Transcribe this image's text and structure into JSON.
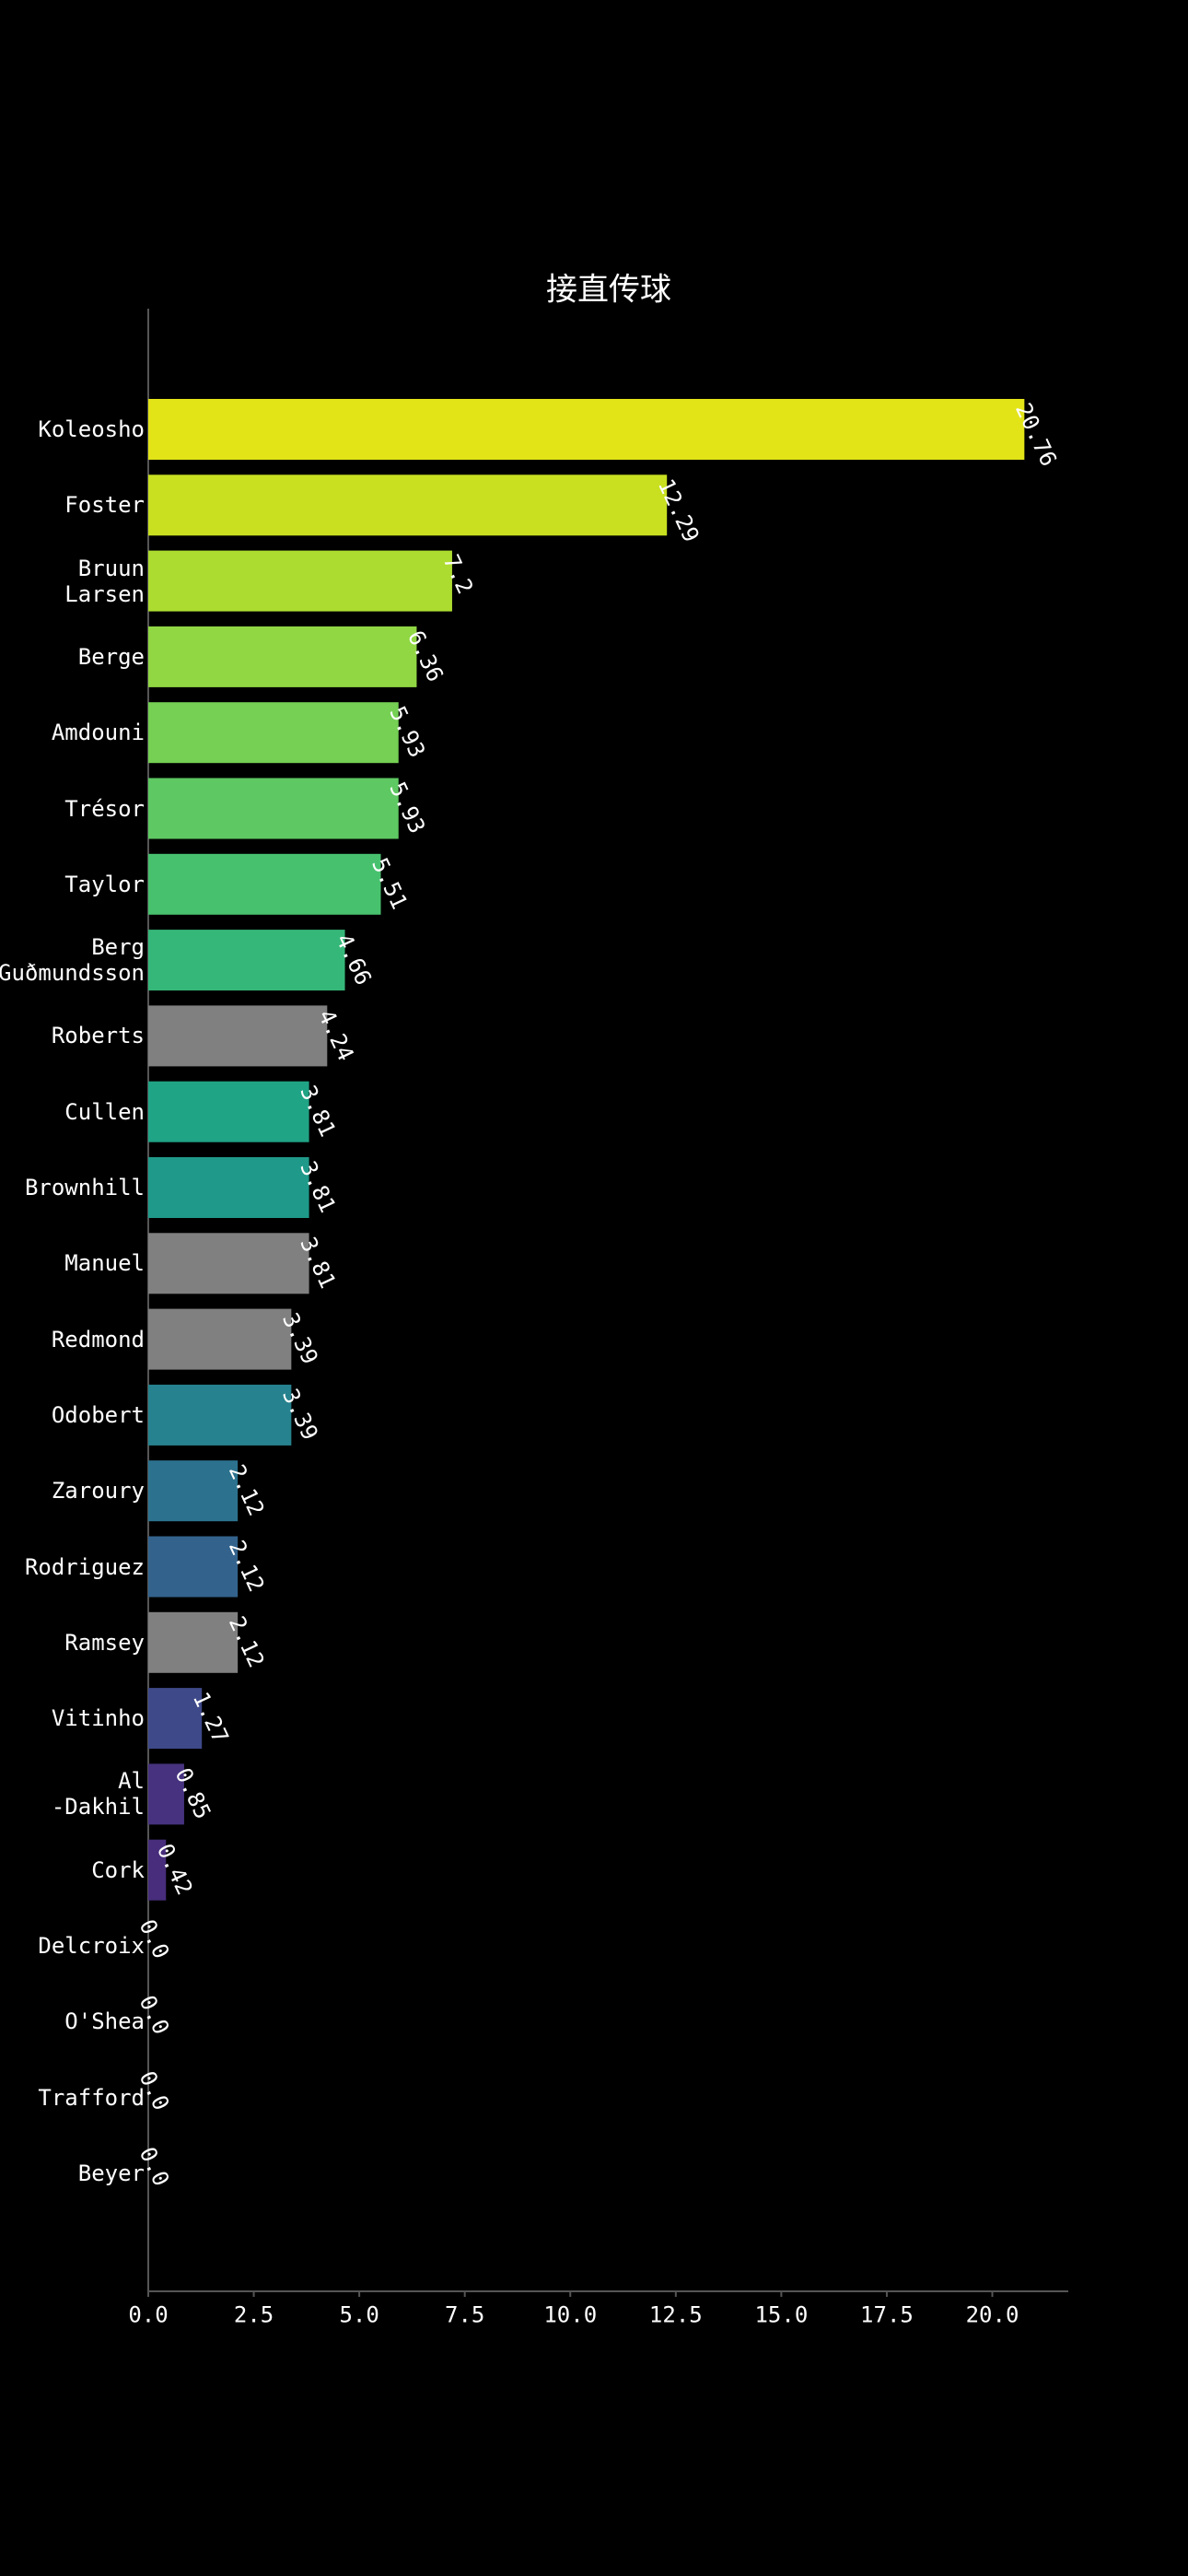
{
  "chart_data": {
    "type": "barh",
    "title": "接直传球",
    "categories": [
      "Koleosho",
      "Foster",
      "Bruun\nLarsen",
      "Berge",
      "Amdouni",
      "Trésor",
      "Taylor",
      "Berg\nGuðmundsson",
      "Roberts",
      "Cullen",
      "Brownhill",
      "Manuel",
      "Redmond",
      "Odobert",
      "Zaroury",
      "Rodriguez",
      "Ramsey",
      "Vitinho",
      "Al\n-Dakhil",
      "Cork",
      "Delcroix",
      "O'Shea",
      "Trafford",
      "Beyer"
    ],
    "values": [
      20.76,
      12.29,
      7.2,
      6.36,
      5.93,
      5.93,
      5.51,
      4.66,
      4.24,
      3.81,
      3.81,
      3.81,
      3.39,
      3.39,
      2.12,
      2.12,
      2.12,
      1.27,
      0.85,
      0.42,
      0,
      0,
      0,
      0
    ],
    "value_labels": [
      "20.76",
      "12.29",
      "7.2",
      "6.36",
      "5.93",
      "5.93",
      "5.51",
      "4.66",
      "4.24",
      "3.81",
      "3.81",
      "3.81",
      "3.39",
      "3.39",
      "2.12",
      "2.12",
      "2.12",
      "1.27",
      "0.85",
      "0.42",
      "0.0",
      "0.0",
      "0.0",
      "0.0"
    ],
    "colors": [
      "#e2e418",
      "#c8e020",
      "#addc30",
      "#90d743",
      "#75d054",
      "#5ec962",
      "#48c16e",
      "#35b779",
      "#808080",
      "#20a486",
      "#1f9a8a",
      "#808080",
      "#808080",
      "#26828e",
      "#2c728e",
      "#33638d",
      "#808080",
      "#3e4989",
      "#46327e",
      "#472d7b",
      "#482173",
      "#481467",
      "#470d60",
      "#440154"
    ],
    "xlim": [
      0,
      21.8
    ],
    "xticks": [
      {
        "value": 0,
        "label": "0.0"
      },
      2.5,
      {
        "value": 5,
        "label": "5.0"
      },
      7.5,
      {
        "value": 10,
        "label": "10.0"
      },
      12.5,
      {
        "value": 15,
        "label": "15.0"
      },
      17.5,
      {
        "value": 20,
        "label": "20.0"
      }
    ]
  }
}
